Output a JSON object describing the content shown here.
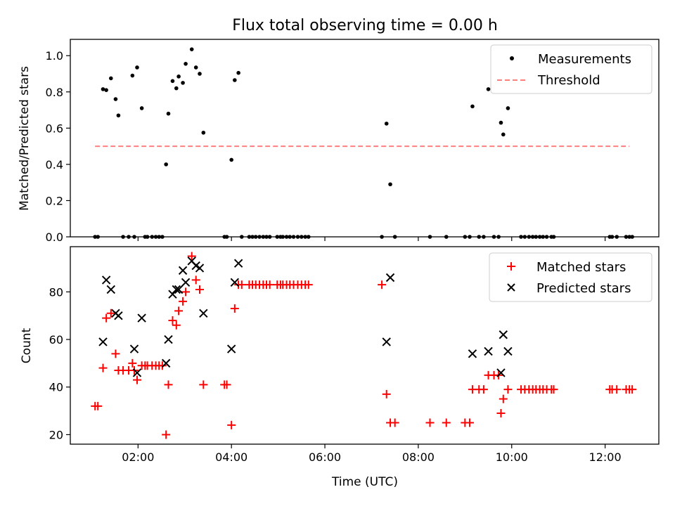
{
  "figure_title": "Flux total observing time = 0.00 h",
  "chart_data": [
    {
      "type": "scatter",
      "panel": "top",
      "title": "Flux total observing time = 0.00 h",
      "xlabel": "",
      "ylabel": "Matched/Predicted stars",
      "xlim": [
        0.55,
        13.15
      ],
      "ylim": [
        0,
        1.09
      ],
      "x_ticks": [
        2,
        4,
        6,
        8,
        10,
        12
      ],
      "x_tick_labels": [
        "",
        "",
        "",
        "",
        "",
        ""
      ],
      "y_ticks": [
        0.0,
        0.2,
        0.4,
        0.6,
        0.8,
        1.0
      ],
      "y_tick_labels": [
        "0.0",
        "0.2",
        "0.4",
        "0.6",
        "0.8",
        "1.0"
      ],
      "legend_position": "top-right",
      "series": [
        {
          "name": "Measurements",
          "marker": "dot",
          "color": "#000000",
          "x": [
            1.08,
            1.14,
            1.25,
            1.32,
            1.42,
            1.52,
            1.58,
            1.68,
            1.8,
            1.88,
            1.92,
            1.98,
            2.08,
            2.15,
            2.2,
            2.3,
            2.38,
            2.45,
            2.52,
            2.6,
            2.65,
            2.74,
            2.82,
            2.87,
            2.96,
            3.02,
            3.15,
            3.24,
            3.32,
            3.4,
            3.85,
            3.9,
            4.0,
            4.07,
            4.15,
            4.22,
            4.38,
            4.45,
            4.52,
            4.6,
            4.68,
            4.75,
            4.82,
            4.98,
            5.05,
            5.1,
            5.18,
            5.25,
            5.33,
            5.42,
            5.5,
            5.58,
            5.65,
            7.22,
            7.32,
            7.4,
            7.5,
            8.25,
            8.6,
            9.0,
            9.1,
            9.16,
            9.3,
            9.4,
            9.5,
            9.62,
            9.72,
            9.77,
            9.82,
            9.92,
            10.2,
            10.28,
            10.37,
            10.45,
            10.52,
            10.6,
            10.67,
            10.75,
            10.85,
            10.9,
            12.1,
            12.15,
            12.25,
            12.45,
            12.52,
            12.58
          ],
          "y": [
            0,
            0,
            0.815,
            0.81,
            0.875,
            0.76,
            0.67,
            0,
            0,
            0.89,
            0,
            0.935,
            0.71,
            0,
            0,
            0,
            0,
            0,
            0,
            0.4,
            0.68,
            0.86,
            0.82,
            0.885,
            0.85,
            0.955,
            1.035,
            0.935,
            0.9,
            0.575,
            0,
            0,
            0.425,
            0.865,
            0.905,
            0,
            0,
            0,
            0,
            0,
            0,
            0,
            0,
            0,
            0,
            0,
            0,
            0,
            0,
            0,
            0,
            0,
            0,
            0,
            0.625,
            0.29,
            0,
            0,
            0,
            0,
            0,
            0.72,
            0,
            0,
            0.815,
            0,
            0,
            0.63,
            0.565,
            0.71,
            0,
            0,
            0,
            0,
            0,
            0,
            0,
            0,
            0,
            0,
            0,
            0,
            0,
            0,
            0,
            0
          ]
        },
        {
          "name": "Threshold",
          "style": "dashed",
          "color": "#ff7f7f",
          "x": [
            1.08,
            12.52
          ],
          "y": [
            0.5,
            0.5
          ]
        }
      ]
    },
    {
      "type": "scatter",
      "panel": "bottom",
      "title": "",
      "xlabel": "Time (UTC)",
      "ylabel": "Count",
      "xlim": [
        0.55,
        13.15
      ],
      "ylim": [
        16,
        99
      ],
      "x_ticks": [
        2,
        4,
        6,
        8,
        10,
        12
      ],
      "x_tick_labels": [
        "02:00",
        "04:00",
        "06:00",
        "08:00",
        "10:00",
        "12:00"
      ],
      "y_ticks": [
        20,
        40,
        60,
        80
      ],
      "y_tick_labels": [
        "20",
        "40",
        "60",
        "80"
      ],
      "legend_position": "top-right",
      "series": [
        {
          "name": "Matched stars",
          "marker": "plus",
          "color": "#ff0000",
          "x": [
            1.08,
            1.14,
            1.25,
            1.32,
            1.42,
            1.52,
            1.58,
            1.68,
            1.8,
            1.88,
            1.92,
            1.98,
            2.08,
            2.15,
            2.2,
            2.3,
            2.38,
            2.45,
            2.52,
            2.6,
            2.65,
            2.74,
            2.82,
            2.87,
            2.96,
            3.02,
            3.15,
            3.24,
            3.32,
            3.4,
            3.85,
            3.9,
            4.0,
            4.07,
            4.15,
            4.22,
            4.38,
            4.45,
            4.52,
            4.6,
            4.68,
            4.75,
            4.82,
            4.98,
            5.05,
            5.1,
            5.18,
            5.25,
            5.33,
            5.42,
            5.5,
            5.58,
            5.65,
            7.22,
            7.32,
            7.4,
            7.5,
            8.25,
            8.6,
            9.0,
            9.1,
            9.16,
            9.3,
            9.4,
            9.5,
            9.62,
            9.72,
            9.77,
            9.82,
            9.92,
            10.2,
            10.28,
            10.37,
            10.45,
            10.52,
            10.6,
            10.67,
            10.75,
            10.85,
            10.9,
            12.1,
            12.15,
            12.25,
            12.45,
            12.52,
            12.58
          ],
          "y": [
            32,
            32,
            48,
            69,
            71,
            54,
            47,
            47,
            47,
            50,
            47,
            43,
            49,
            49,
            49,
            49,
            49,
            49,
            49,
            20,
            41,
            68,
            66,
            72,
            76,
            80,
            95,
            85,
            81,
            41,
            41,
            41,
            24,
            73,
            83,
            83,
            83,
            83,
            83,
            83,
            83,
            83,
            83,
            83,
            83,
            83,
            83,
            83,
            83,
            83,
            83,
            83,
            83,
            83,
            37,
            25,
            25,
            25,
            25,
            25,
            25,
            39,
            39,
            39,
            45,
            45,
            45,
            29,
            35,
            39,
            39,
            39,
            39,
            39,
            39,
            39,
            39,
            39,
            39,
            39,
            39,
            39,
            39,
            39,
            39,
            39
          ]
        },
        {
          "name": "Predicted stars",
          "marker": "x",
          "color": "#000000",
          "x": [
            1.25,
            1.32,
            1.42,
            1.52,
            1.58,
            1.92,
            1.98,
            2.08,
            2.6,
            2.65,
            2.74,
            2.82,
            2.87,
            2.96,
            3.02,
            3.15,
            3.24,
            3.32,
            3.4,
            4.0,
            4.07,
            4.15,
            7.32,
            7.4,
            9.16,
            9.5,
            9.77,
            9.82,
            9.92
          ],
          "y": [
            59,
            85,
            81,
            71,
            70,
            56,
            46,
            69,
            50,
            60,
            79,
            81,
            81,
            89,
            84,
            93,
            91,
            90,
            71,
            56,
            84,
            92,
            59,
            86,
            54,
            55,
            46,
            62,
            55
          ]
        }
      ]
    }
  ]
}
